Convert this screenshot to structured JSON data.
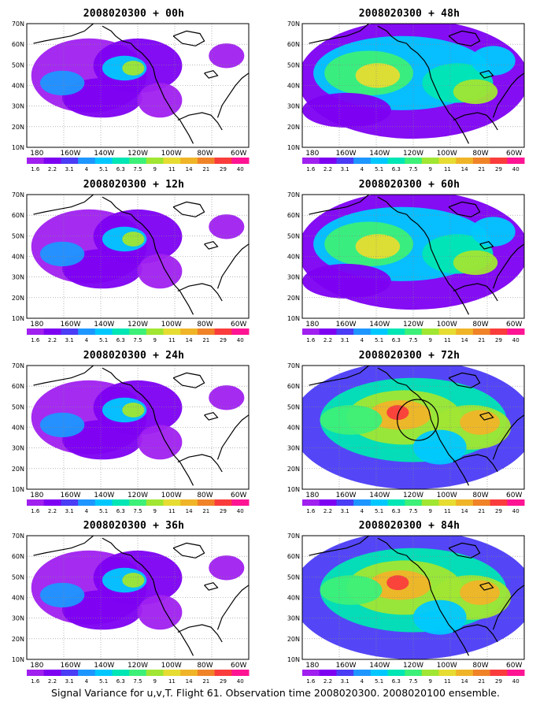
{
  "footer": "Signal Variance for u,v,T. Flight 61. Observation time 2008020300. 2008020100 ensemble.",
  "axes": {
    "lat_labels": [
      "70N",
      "60N",
      "50N",
      "40N",
      "30N",
      "20N",
      "10N"
    ],
    "lon_labels": [
      "180",
      "160W",
      "140W",
      "120W",
      "100W",
      "80W",
      "60W"
    ]
  },
  "colorbar": {
    "labels": [
      "1.6",
      "2.2",
      "3.1",
      "4",
      "5.1",
      "6.3",
      "7.5",
      "9",
      "11",
      "14",
      "21",
      "29",
      "40"
    ],
    "colors": [
      "#a020f0",
      "#7d00f2",
      "#4b3cf5",
      "#1e96ff",
      "#00c8ff",
      "#00e6b4",
      "#3cf078",
      "#a0e632",
      "#e6dc32",
      "#f0b428",
      "#f08228",
      "#fa3c3c",
      "#ff1493"
    ]
  },
  "panels": [
    {
      "id": "00h",
      "title": "2008020300 + 00h",
      "fill": "low"
    },
    {
      "id": "48h",
      "title": "2008020300 + 48h",
      "fill": "mid"
    },
    {
      "id": "12h",
      "title": "2008020300 + 12h",
      "fill": "low"
    },
    {
      "id": "60h",
      "title": "2008020300 + 60h",
      "fill": "mid"
    },
    {
      "id": "24h",
      "title": "2008020300 + 24h",
      "fill": "low"
    },
    {
      "id": "72h",
      "title": "2008020300 + 72h",
      "fill": "high",
      "circle": "yes"
    },
    {
      "id": "36h",
      "title": "2008020300 + 36h",
      "fill": "low"
    },
    {
      "id": "84h",
      "title": "2008020300 + 84h",
      "fill": "high"
    }
  ]
}
